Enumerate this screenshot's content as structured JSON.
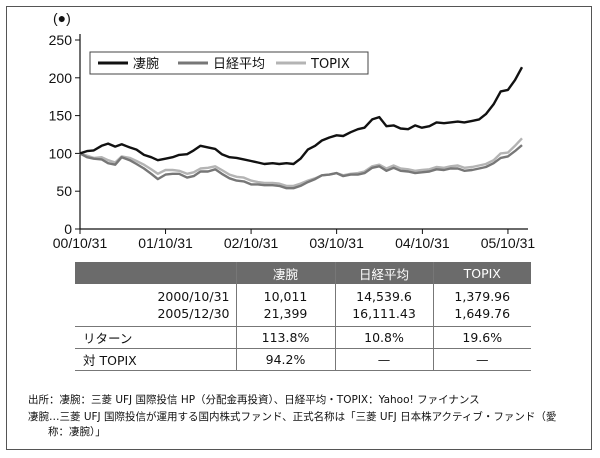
{
  "chart_data": {
    "type": "line",
    "y_unit_label": "(●)",
    "ylim": [
      0,
      250
    ],
    "yticks": [
      0,
      50,
      100,
      150,
      200,
      250
    ],
    "xlim": [
      "2000-10-31",
      "2005-12-30"
    ],
    "xtick_labels": [
      "00/10/31",
      "01/10/31",
      "02/10/31",
      "03/10/31",
      "04/10/31",
      "05/10/31"
    ],
    "xtick_dates": [
      "2000-10-31",
      "2001-10-31",
      "2002-10-31",
      "2003-10-31",
      "2004-10-31",
      "2005-10-31"
    ],
    "grid": false,
    "legend_position": "top-left",
    "series": [
      {
        "name": "凄腕",
        "color": "#111111",
        "points": [
          [
            "2000-10-31",
            100
          ],
          [
            "2000-11-30",
            103
          ],
          [
            "2000-12-29",
            104
          ],
          [
            "2001-01-31",
            110
          ],
          [
            "2001-02-28",
            113
          ],
          [
            "2001-03-30",
            109
          ],
          [
            "2001-04-27",
            112
          ],
          [
            "2001-05-31",
            108
          ],
          [
            "2001-06-29",
            105
          ],
          [
            "2001-07-31",
            98
          ],
          [
            "2001-08-31",
            95
          ],
          [
            "2001-09-28",
            91
          ],
          [
            "2001-10-31",
            93
          ],
          [
            "2001-11-30",
            95
          ],
          [
            "2001-12-28",
            98
          ],
          [
            "2002-01-31",
            99
          ],
          [
            "2002-02-28",
            104
          ],
          [
            "2002-03-29",
            110
          ],
          [
            "2002-04-30",
            108
          ],
          [
            "2002-05-31",
            106
          ],
          [
            "2002-06-28",
            99
          ],
          [
            "2002-07-31",
            95
          ],
          [
            "2002-08-30",
            94
          ],
          [
            "2002-09-30",
            92
          ],
          [
            "2002-10-31",
            90
          ],
          [
            "2002-11-29",
            88
          ],
          [
            "2002-12-27",
            86
          ],
          [
            "2003-01-31",
            87
          ],
          [
            "2003-02-28",
            86
          ],
          [
            "2003-03-31",
            87
          ],
          [
            "2003-04-30",
            86
          ],
          [
            "2003-05-30",
            93
          ],
          [
            "2003-06-30",
            105
          ],
          [
            "2003-07-31",
            110
          ],
          [
            "2003-08-29",
            117
          ],
          [
            "2003-09-30",
            121
          ],
          [
            "2003-10-31",
            124
          ],
          [
            "2003-11-28",
            123
          ],
          [
            "2003-12-30",
            128
          ],
          [
            "2004-01-30",
            132
          ],
          [
            "2004-02-27",
            134
          ],
          [
            "2004-03-31",
            145
          ],
          [
            "2004-04-30",
            148
          ],
          [
            "2004-05-31",
            136
          ],
          [
            "2004-06-30",
            137
          ],
          [
            "2004-07-30",
            133
          ],
          [
            "2004-08-31",
            132
          ],
          [
            "2004-09-30",
            137
          ],
          [
            "2004-10-29",
            134
          ],
          [
            "2004-11-30",
            136
          ],
          [
            "2004-12-30",
            141
          ],
          [
            "2005-01-31",
            140
          ],
          [
            "2005-02-28",
            141
          ],
          [
            "2005-03-31",
            142
          ],
          [
            "2005-04-28",
            141
          ],
          [
            "2005-05-31",
            143
          ],
          [
            "2005-06-30",
            145
          ],
          [
            "2005-07-29",
            152
          ],
          [
            "2005-08-31",
            165
          ],
          [
            "2005-09-30",
            182
          ],
          [
            "2005-10-31",
            184
          ],
          [
            "2005-11-30",
            197
          ],
          [
            "2005-12-30",
            214
          ]
        ]
      },
      {
        "name": "日経平均",
        "color": "#777777",
        "points": [
          [
            "2000-10-31",
            100
          ],
          [
            "2000-11-30",
            95
          ],
          [
            "2000-12-29",
            93
          ],
          [
            "2001-01-31",
            92
          ],
          [
            "2001-02-28",
            87
          ],
          [
            "2001-03-30",
            85
          ],
          [
            "2001-04-27",
            95
          ],
          [
            "2001-05-31",
            91
          ],
          [
            "2001-06-29",
            86
          ],
          [
            "2001-07-31",
            80
          ],
          [
            "2001-08-31",
            73
          ],
          [
            "2001-09-28",
            66
          ],
          [
            "2001-10-31",
            72
          ],
          [
            "2001-11-30",
            73
          ],
          [
            "2001-12-28",
            73
          ],
          [
            "2002-01-31",
            68
          ],
          [
            "2002-02-28",
            70
          ],
          [
            "2002-03-29",
            76
          ],
          [
            "2002-04-30",
            76
          ],
          [
            "2002-05-31",
            79
          ],
          [
            "2002-06-28",
            73
          ],
          [
            "2002-07-31",
            67
          ],
          [
            "2002-08-30",
            64
          ],
          [
            "2002-09-30",
            63
          ],
          [
            "2002-10-31",
            59
          ],
          [
            "2002-11-29",
            59
          ],
          [
            "2002-12-27",
            58
          ],
          [
            "2003-01-31",
            58
          ],
          [
            "2003-02-28",
            57
          ],
          [
            "2003-03-31",
            54
          ],
          [
            "2003-04-30",
            54
          ],
          [
            "2003-05-30",
            57
          ],
          [
            "2003-06-30",
            62
          ],
          [
            "2003-07-31",
            66
          ],
          [
            "2003-08-29",
            71
          ],
          [
            "2003-09-30",
            72
          ],
          [
            "2003-10-31",
            74
          ],
          [
            "2003-11-28",
            70
          ],
          [
            "2003-12-30",
            72
          ],
          [
            "2004-01-30",
            72
          ],
          [
            "2004-02-27",
            74
          ],
          [
            "2004-03-31",
            81
          ],
          [
            "2004-04-30",
            83
          ],
          [
            "2004-05-31",
            77
          ],
          [
            "2004-06-30",
            81
          ],
          [
            "2004-07-30",
            77
          ],
          [
            "2004-08-31",
            76
          ],
          [
            "2004-09-30",
            74
          ],
          [
            "2004-10-29",
            75
          ],
          [
            "2004-11-30",
            76
          ],
          [
            "2004-12-30",
            79
          ],
          [
            "2005-01-31",
            78
          ],
          [
            "2005-02-28",
            80
          ],
          [
            "2005-03-31",
            80
          ],
          [
            "2005-04-28",
            77
          ],
          [
            "2005-05-31",
            78
          ],
          [
            "2005-06-30",
            80
          ],
          [
            "2005-07-29",
            82
          ],
          [
            "2005-08-31",
            87
          ],
          [
            "2005-09-30",
            94
          ],
          [
            "2005-10-31",
            96
          ],
          [
            "2005-11-30",
            103
          ],
          [
            "2005-12-30",
            111
          ]
        ]
      },
      {
        "name": "TOPIX",
        "color": "#b4b4b4",
        "points": [
          [
            "2000-10-31",
            100
          ],
          [
            "2000-11-30",
            97
          ],
          [
            "2000-12-29",
            94
          ],
          [
            "2001-01-31",
            95
          ],
          [
            "2001-02-28",
            91
          ],
          [
            "2001-03-30",
            88
          ],
          [
            "2001-04-27",
            96
          ],
          [
            "2001-05-31",
            94
          ],
          [
            "2001-06-29",
            90
          ],
          [
            "2001-07-31",
            85
          ],
          [
            "2001-08-31",
            79
          ],
          [
            "2001-09-28",
            73
          ],
          [
            "2001-10-31",
            78
          ],
          [
            "2001-11-30",
            78
          ],
          [
            "2001-12-28",
            77
          ],
          [
            "2002-01-31",
            73
          ],
          [
            "2002-02-28",
            75
          ],
          [
            "2002-03-29",
            80
          ],
          [
            "2002-04-30",
            81
          ],
          [
            "2002-05-31",
            83
          ],
          [
            "2002-06-28",
            78
          ],
          [
            "2002-07-31",
            72
          ],
          [
            "2002-08-30",
            69
          ],
          [
            "2002-09-30",
            68
          ],
          [
            "2002-10-31",
            64
          ],
          [
            "2002-11-29",
            62
          ],
          [
            "2002-12-27",
            61
          ],
          [
            "2003-01-31",
            61
          ],
          [
            "2003-02-28",
            60
          ],
          [
            "2003-03-31",
            57
          ],
          [
            "2003-04-30",
            57
          ],
          [
            "2003-05-30",
            60
          ],
          [
            "2003-06-30",
            64
          ],
          [
            "2003-07-31",
            67
          ],
          [
            "2003-08-29",
            71
          ],
          [
            "2003-09-30",
            72
          ],
          [
            "2003-10-31",
            74
          ],
          [
            "2003-11-28",
            71
          ],
          [
            "2003-12-30",
            73
          ],
          [
            "2004-01-30",
            74
          ],
          [
            "2004-02-27",
            76
          ],
          [
            "2004-03-31",
            83
          ],
          [
            "2004-04-30",
            85
          ],
          [
            "2004-05-31",
            80
          ],
          [
            "2004-06-30",
            84
          ],
          [
            "2004-07-30",
            80
          ],
          [
            "2004-08-31",
            79
          ],
          [
            "2004-09-30",
            77
          ],
          [
            "2004-10-29",
            78
          ],
          [
            "2004-11-30",
            79
          ],
          [
            "2004-12-30",
            82
          ],
          [
            "2005-01-31",
            81
          ],
          [
            "2005-02-28",
            83
          ],
          [
            "2005-03-31",
            84
          ],
          [
            "2005-04-28",
            81
          ],
          [
            "2005-05-31",
            82
          ],
          [
            "2005-06-30",
            84
          ],
          [
            "2005-07-29",
            86
          ],
          [
            "2005-08-31",
            91
          ],
          [
            "2005-09-30",
            100
          ],
          [
            "2005-10-31",
            101
          ],
          [
            "2005-11-30",
            110
          ],
          [
            "2005-12-30",
            120
          ]
        ]
      }
    ]
  },
  "table": {
    "headers": [
      "",
      "凄腕",
      "日経平均",
      "TOPIX"
    ],
    "rows": [
      [
        "2000/10/31",
        "10,011",
        "14,539.6",
        "1,379.96"
      ],
      [
        "2005/12/30",
        "21,399",
        "16,111.43",
        "1,649.76"
      ],
      [
        "リターン",
        "113.8%",
        "10.8%",
        "19.6%"
      ],
      [
        "対 TOPIX",
        "94.2%",
        "—",
        "—"
      ]
    ]
  },
  "notes": {
    "line1": "出所：凄腕：三菱 UFJ 国際投信 HP（分配金再投資）、日経平均・TOPIX：Yahoo! ファイナンス",
    "line2": "凄腕…三菱 UFJ 国際投信が運用する国内株式ファンド、正式名称は「三菱 UFJ 日本株アクティブ・ファンド（愛",
    "line3": "称：凄腕）」"
  }
}
